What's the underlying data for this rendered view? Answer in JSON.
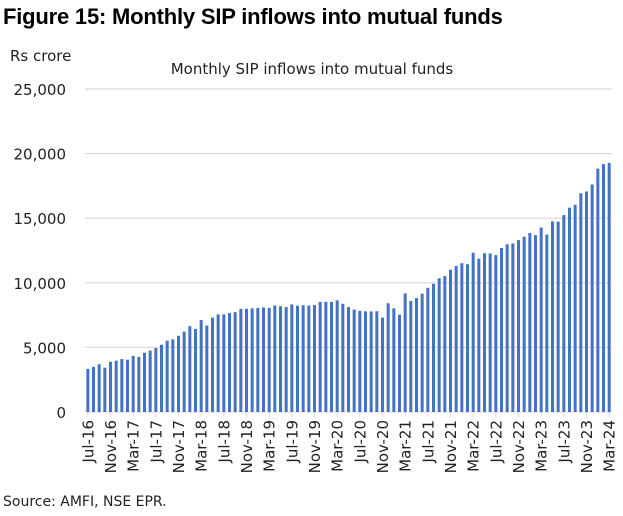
{
  "figure_title": "Figure 15: Monthly SIP inflows into mutual funds",
  "source": "Source: AMFI, NSE EPR.",
  "chart_data": {
    "type": "bar",
    "title": "Monthly SIP inflows into mutual funds",
    "ylabel": "Rs crore",
    "xlabel": "",
    "ylim": [
      0,
      25000
    ],
    "yticks": [
      0,
      5000,
      10000,
      15000,
      20000,
      25000
    ],
    "ytick_labels": [
      "0",
      "5,000",
      "10,000",
      "15,000",
      "20,000",
      "25,000"
    ],
    "grid": true,
    "bar_color": "#4472C4",
    "start_month": "Jul-16",
    "xtick_labels": [
      "Jul-16",
      "Nov-16",
      "Mar-17",
      "Jul-17",
      "Nov-17",
      "Mar-18",
      "Jul-18",
      "Nov-18",
      "Mar-19",
      "Jul-19",
      "Nov-19",
      "Mar-20",
      "Jul-20",
      "Nov-20",
      "Mar-21",
      "Jul-21",
      "Nov-21",
      "Mar-22",
      "Jul-22",
      "Nov-22",
      "Mar-23",
      "Jul-23",
      "Nov-23",
      "Mar-24"
    ],
    "values": [
      3334,
      3497,
      3698,
      3434,
      3884,
      3973,
      4095,
      4050,
      4335,
      4269,
      4584,
      4744,
      4947,
      5206,
      5516,
      5621,
      5893,
      6222,
      6644,
      6425,
      7119,
      6690,
      7304,
      7554,
      7554,
      7658,
      7727,
      7985,
      7985,
      8022,
      8064,
      8095,
      8055,
      8238,
      8183,
      8122,
      8324,
      8231,
      8263,
      8246,
      8273,
      8518,
      8532,
      8513,
      8641,
      8376,
      8123,
      7927,
      7831,
      7792,
      7788,
      7800,
      7302,
      8418,
      8023,
      7528,
      9182,
      8596,
      8819,
      9156,
      9609,
      9923,
      10351,
      10519,
      11005,
      11305,
      11517,
      11438,
      12328,
      11863,
      12286,
      12276,
      12140,
      12693,
      12976,
      13041,
      13306,
      13573,
      13856,
      13686,
      14276,
      13728,
      14749,
      14734,
      15245,
      15814,
      16042,
      16928,
      17073,
      17610,
      18838,
      19187,
      19271
    ]
  }
}
